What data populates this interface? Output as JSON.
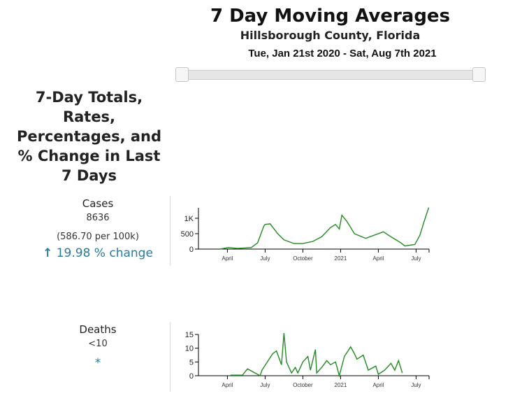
{
  "header": {
    "title": "7 Day Moving Averages",
    "subtitle": "Hillsborough County, Florida",
    "date_range": "Tue, Jan 21st 2020 - Sat, Aug 7th 2021"
  },
  "section_heading": "7-Day Totals, Rates, Percentages, and % Change in Last 7 Days",
  "cases": {
    "label": "Cases",
    "total": "8636",
    "rate": "(586.70 per 100k)",
    "change_icon": "arrow-up-icon",
    "change": "19.98 % change"
  },
  "deaths": {
    "label": "Deaths",
    "total": "<10",
    "change": "*"
  },
  "chart_data": [
    {
      "type": "line",
      "title": "Cases",
      "color": "#228b22",
      "xunit": "months since Jan 1 2020",
      "xlim": [
        0.7,
        19.03
      ],
      "ylim": [
        0,
        1340
      ],
      "x_ticks": [
        {
          "m": 3,
          "label": "April"
        },
        {
          "m": 6,
          "label": "July"
        },
        {
          "m": 9,
          "label": "October"
        },
        {
          "m": 12,
          "label": "2021"
        },
        {
          "m": 15,
          "label": "April"
        },
        {
          "m": 18,
          "label": "July"
        }
      ],
      "y_ticks": [
        {
          "v": 0,
          "label": "0"
        },
        {
          "v": 500,
          "label": "500"
        },
        {
          "v": 1000,
          "label": "1K"
        }
      ],
      "points": [
        [
          2.4,
          0
        ],
        [
          3.1,
          50
        ],
        [
          3.8,
          20
        ],
        [
          4.9,
          50
        ],
        [
          5.4,
          200
        ],
        [
          5.9,
          750
        ],
        [
          6.0,
          800
        ],
        [
          6.4,
          820
        ],
        [
          7.0,
          500
        ],
        [
          7.5,
          300
        ],
        [
          8.3,
          180
        ],
        [
          9.0,
          180
        ],
        [
          9.8,
          250
        ],
        [
          10.5,
          400
        ],
        [
          11.2,
          700
        ],
        [
          11.6,
          800
        ],
        [
          11.9,
          650
        ],
        [
          12.1,
          1100
        ],
        [
          12.5,
          900
        ],
        [
          13.1,
          500
        ],
        [
          14.0,
          350
        ],
        [
          15.4,
          560
        ],
        [
          16.0,
          400
        ],
        [
          16.8,
          200
        ],
        [
          17.1,
          100
        ],
        [
          17.9,
          150
        ],
        [
          18.3,
          450
        ],
        [
          18.6,
          850
        ],
        [
          18.8,
          1100
        ],
        [
          19.0,
          1350
        ]
      ]
    },
    {
      "type": "line",
      "title": "Deaths",
      "color": "#228b22",
      "xunit": "months since Jan 1 2020",
      "xlim": [
        0.7,
        19.03
      ],
      "ylim": [
        0,
        15
      ],
      "x_ticks": [
        {
          "m": 3,
          "label": "April"
        },
        {
          "m": 6,
          "label": "July"
        },
        {
          "m": 9,
          "label": "October"
        },
        {
          "m": 12,
          "label": "2021"
        },
        {
          "m": 15,
          "label": "April"
        },
        {
          "m": 18,
          "label": "July"
        }
      ],
      "y_ticks": [
        {
          "v": 0,
          "label": "0"
        },
        {
          "v": 5,
          "label": "5"
        },
        {
          "v": 10,
          "label": "10"
        },
        {
          "v": 15,
          "label": "15"
        }
      ],
      "points": [
        [
          3.25,
          0.2
        ],
        [
          4.2,
          0.2
        ],
        [
          4.6,
          2.5
        ],
        [
          5.6,
          0
        ],
        [
          5.75,
          2
        ],
        [
          6.6,
          8
        ],
        [
          6.9,
          9
        ],
        [
          7.3,
          4
        ],
        [
          7.5,
          15.5
        ],
        [
          7.7,
          5
        ],
        [
          8.1,
          1
        ],
        [
          8.4,
          3
        ],
        [
          8.6,
          1
        ],
        [
          9.0,
          5
        ],
        [
          9.4,
          7
        ],
        [
          9.6,
          2
        ],
        [
          10.0,
          9.5
        ],
        [
          10.1,
          1
        ],
        [
          10.5,
          3
        ],
        [
          10.9,
          5.5
        ],
        [
          11.2,
          4
        ],
        [
          11.6,
          5
        ],
        [
          11.9,
          0
        ],
        [
          12.3,
          7
        ],
        [
          12.8,
          10.5
        ],
        [
          13.1,
          8
        ],
        [
          13.3,
          6
        ],
        [
          13.8,
          7.5
        ],
        [
          14.2,
          2
        ],
        [
          14.8,
          3.5
        ],
        [
          15.0,
          0.5
        ],
        [
          15.5,
          2
        ],
        [
          16.0,
          4.5
        ],
        [
          16.3,
          2
        ],
        [
          16.6,
          5.5
        ],
        [
          16.9,
          1
        ]
      ]
    }
  ]
}
